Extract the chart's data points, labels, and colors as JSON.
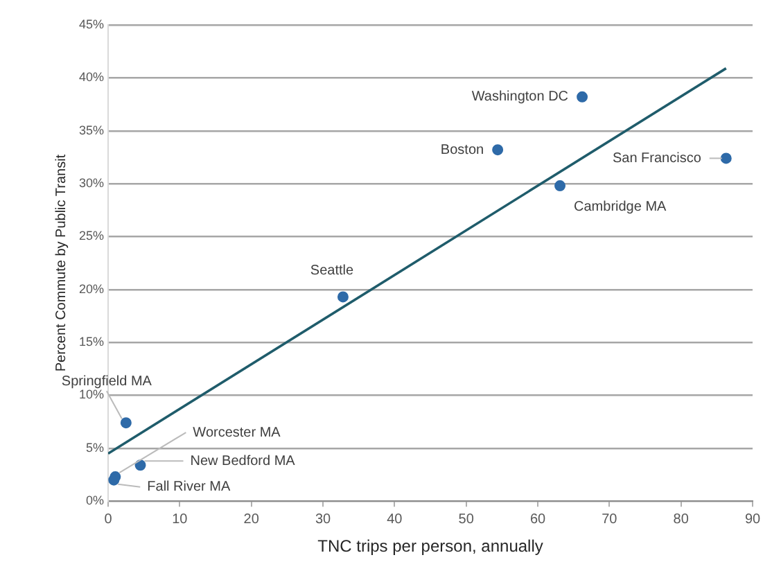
{
  "chart_data": {
    "type": "scatter",
    "xlabel": "TNC trips per person, annually",
    "ylabel": "Percent Commute by Public Transit",
    "series": [
      {
        "color": "#2e6aa8",
        "x": [
          66.2,
          54.4,
          86.3,
          63.1,
          32.8,
          2.5,
          1.0,
          4.5,
          0.8
        ],
        "values": [
          38.2,
          33.2,
          32.4,
          29.8,
          19.3,
          7.4,
          2.3,
          3.4,
          2.0
        ]
      },
      {
        "type": "line",
        "color": "#1f5c6b",
        "marker": "none",
        "x": [
          0,
          86.3
        ],
        "values": [
          4.5,
          40.9
        ]
      }
    ],
    "annotations": [
      {
        "text": "Washington DC",
        "x": 66.2,
        "y": 38.2
      },
      {
        "text": "Boston",
        "x": 54.4,
        "y": 33.2
      },
      {
        "text": "San Francisco",
        "x": 86.3,
        "y": 32.4
      },
      {
        "text": "Cambridge MA",
        "x": 63.1,
        "y": 29.8
      },
      {
        "text": "Seattle",
        "x": 32.8,
        "y": 19.3
      },
      {
        "text": "Springfield MA",
        "x": 2.5,
        "y": 7.4
      },
      {
        "text": "Worcester MA",
        "x": 1.0,
        "y": 2.3
      },
      {
        "text": "New Bedford MA",
        "x": 4.5,
        "y": 3.4
      },
      {
        "text": "Fall River MA",
        "x": 0.8,
        "y": 2.0
      }
    ],
    "xlim": [
      0,
      90
    ],
    "xticks": [
      0,
      10,
      20,
      30,
      40,
      50,
      60,
      70,
      80,
      90
    ],
    "ylim": [
      0,
      45
    ],
    "yticks": [
      {
        "value": 0,
        "label": "0%"
      },
      {
        "value": 5,
        "label": "5%"
      },
      {
        "value": 10,
        "label": "10%"
      },
      {
        "value": 15,
        "label": "15%"
      },
      {
        "value": 20,
        "label": "20%"
      },
      {
        "value": 25,
        "label": "25%"
      },
      {
        "value": 30,
        "label": "30%"
      },
      {
        "value": 35,
        "label": "35%"
      },
      {
        "value": 40,
        "label": "40%"
      },
      {
        "value": 45,
        "label": "45%"
      }
    ],
    "grid": "y",
    "legend": false,
    "marker": "circle",
    "line_style": "solid"
  }
}
